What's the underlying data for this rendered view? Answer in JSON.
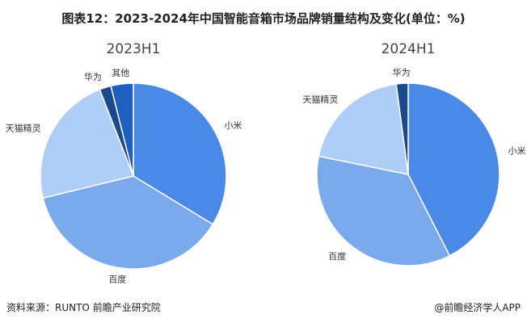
{
  "title": "图表12：2023-2024年中国智能音箱市场品牌销量结构及变化(单位：%)",
  "source": "资料来源：RUNTO 前瞻产业研究院",
  "brand": "@前瞻经济学人APP",
  "chart_data": [
    {
      "type": "pie",
      "title": "2023H1",
      "categories": [
        "小米",
        "百度",
        "天猫精灵",
        "华为",
        "其他"
      ],
      "values": [
        33.7,
        37.5,
        22.9,
        2.0,
        3.9
      ],
      "colors": [
        "#4a8ae6",
        "#7aa9ec",
        "#aecdf7",
        "#1a4a8c",
        "#1f5fc0"
      ]
    },
    {
      "type": "pie",
      "title": "2024H1",
      "categories": [
        "小米",
        "百度",
        "天猫精灵",
        "华为"
      ],
      "values": [
        42.5,
        35.7,
        19.7,
        2.1
      ],
      "colors": [
        "#4a8ae6",
        "#7aa9ec",
        "#aecdf7",
        "#1a4a8c"
      ]
    }
  ]
}
